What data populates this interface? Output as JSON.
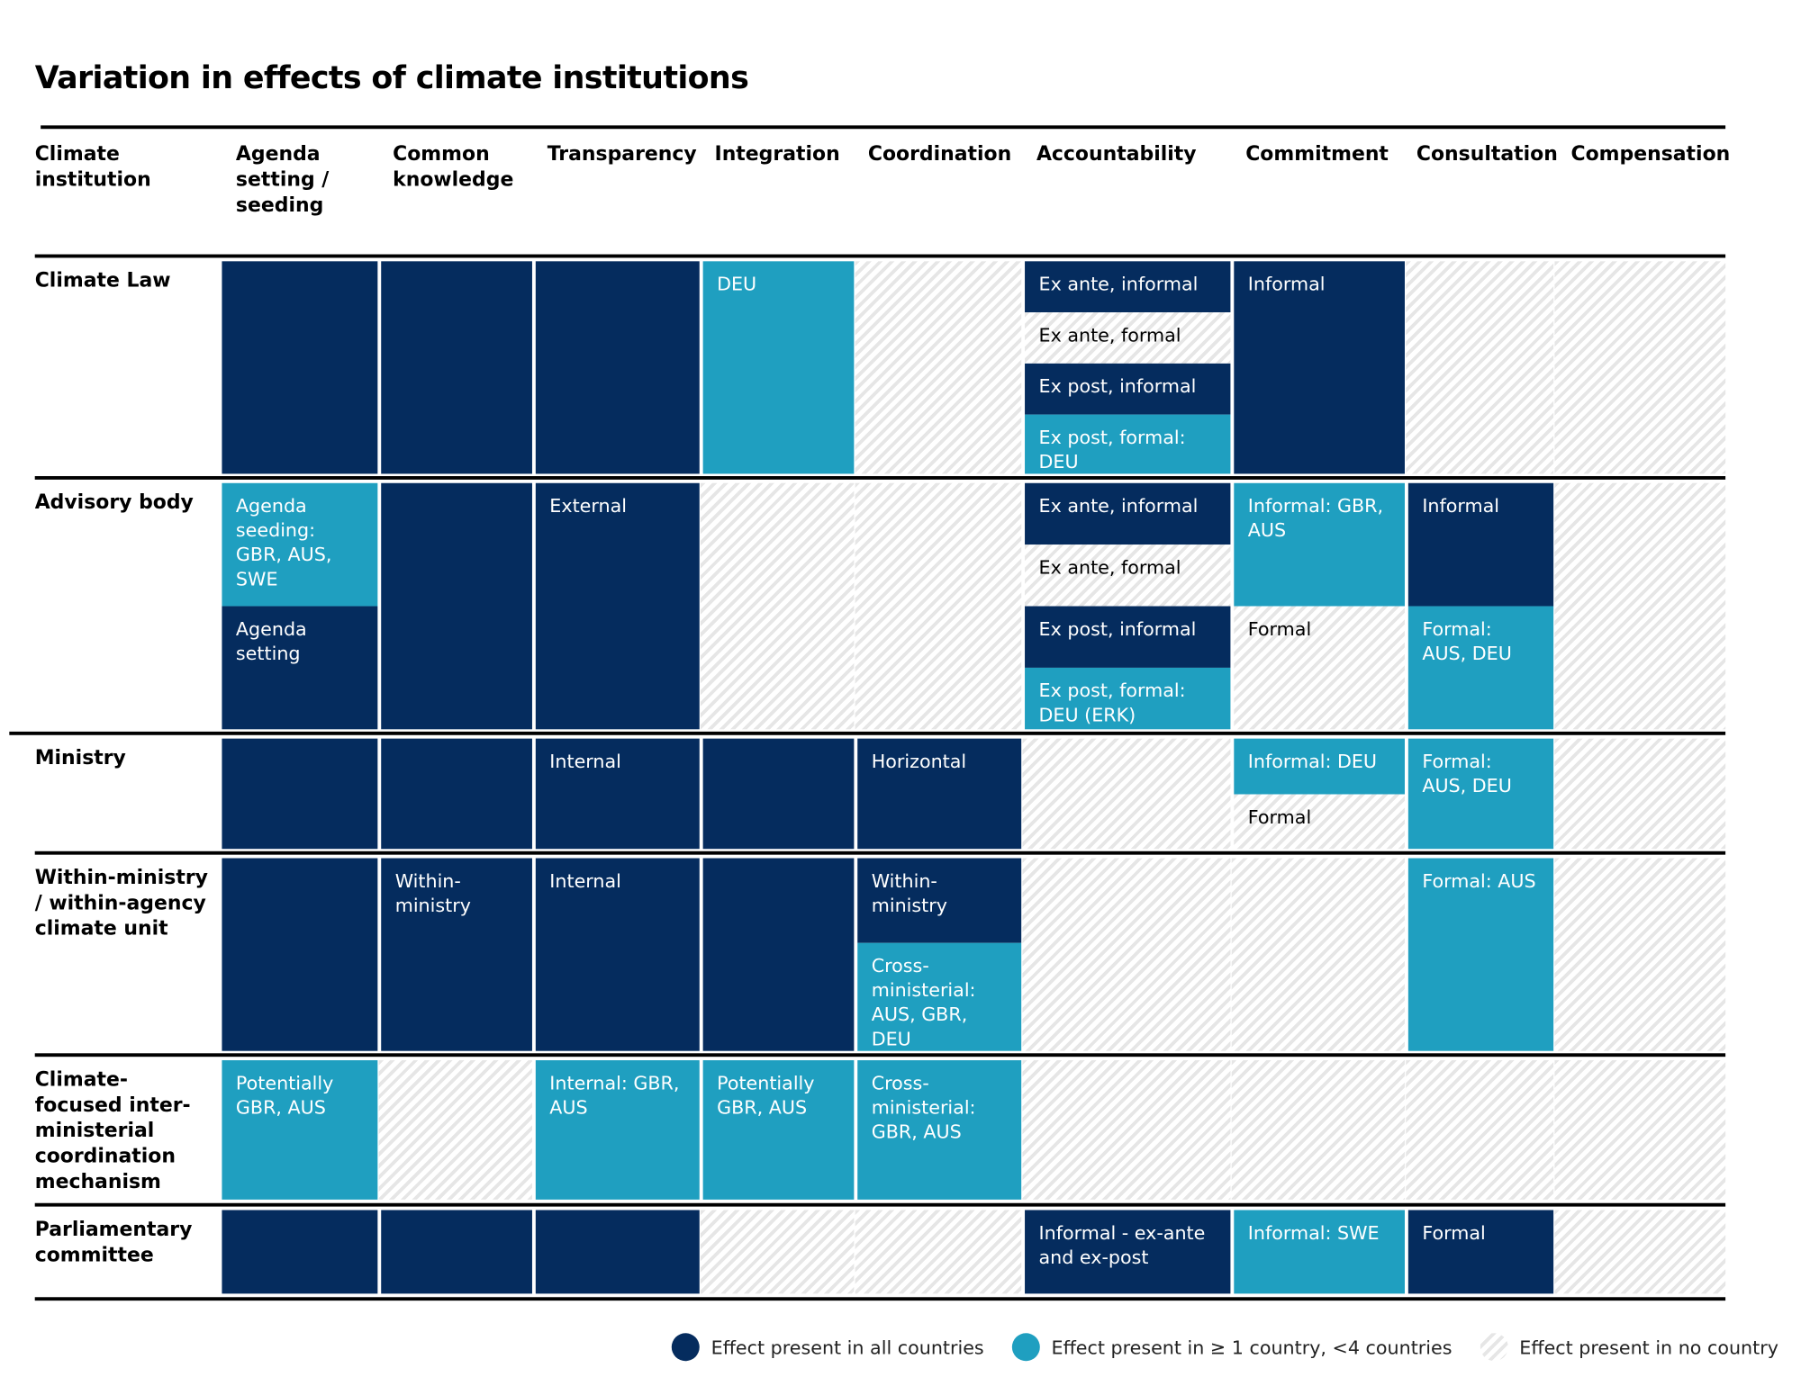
{
  "title": "Variation in effects of climate institutions",
  "columns": [
    "Climate institution",
    "Agenda setting / seeding",
    "Common knowledge",
    "Transparency",
    "Integration",
    "Coordination",
    "Accountability",
    "Commitment",
    "Consultation",
    "Compensation"
  ],
  "colors": {
    "all": "#052c5e",
    "some": "#1f9fc0"
  },
  "rows": [
    {
      "label": "Climate Law",
      "cells": [
        [
          {
            "level": "all"
          }
        ],
        [
          {
            "level": "all"
          }
        ],
        [
          {
            "level": "all"
          }
        ],
        [
          {
            "level": "some",
            "text": "DEU"
          }
        ],
        [
          {
            "level": "none"
          }
        ],
        [
          {
            "level": "all",
            "text": "Ex ante, informal"
          },
          {
            "level": "none",
            "text": "Ex ante, formal"
          },
          {
            "level": "all",
            "text": "Ex post, informal"
          },
          {
            "level": "some",
            "text": "Ex post, formal: DEU"
          }
        ],
        [
          {
            "level": "all",
            "text": "Informal"
          }
        ],
        [
          {
            "level": "none"
          }
        ],
        [
          {
            "level": "none"
          }
        ]
      ]
    },
    {
      "label": "Advisory body",
      "cells": [
        [
          {
            "level": "some",
            "text": "Agenda seeding: GBR, AUS, SWE"
          },
          {
            "level": "all",
            "text": "Agenda setting"
          }
        ],
        [
          {
            "level": "all"
          }
        ],
        [
          {
            "level": "all",
            "text": "External"
          }
        ],
        [
          {
            "level": "none"
          }
        ],
        [
          {
            "level": "none"
          }
        ],
        [
          {
            "level": "all",
            "text": "Ex ante, informal"
          },
          {
            "level": "none",
            "text": "Ex ante, formal"
          },
          {
            "level": "all",
            "text": "Ex post, informal"
          },
          {
            "level": "some",
            "text": "Ex post, formal: DEU (ERK)"
          }
        ],
        [
          {
            "level": "some",
            "text": "Informal: GBR, AUS"
          },
          {
            "level": "none",
            "text": "Formal"
          }
        ],
        [
          {
            "level": "all",
            "text": "Informal"
          },
          {
            "level": "some",
            "text": "Formal: AUS, DEU"
          }
        ],
        [
          {
            "level": "none"
          }
        ]
      ]
    },
    {
      "label": "Ministry",
      "cells": [
        [
          {
            "level": "all"
          }
        ],
        [
          {
            "level": "all"
          }
        ],
        [
          {
            "level": "all",
            "text": "Internal"
          }
        ],
        [
          {
            "level": "all"
          }
        ],
        [
          {
            "level": "all",
            "text": "Horizontal"
          }
        ],
        [
          {
            "level": "none"
          }
        ],
        [
          {
            "level": "some",
            "text": "Informal: DEU"
          },
          {
            "level": "none",
            "text": "Formal"
          }
        ],
        [
          {
            "level": "some",
            "text": "Formal: AUS, DEU"
          }
        ],
        [
          {
            "level": "none"
          }
        ]
      ]
    },
    {
      "label": "Within-ministry / within-agency climate unit",
      "cells": [
        [
          {
            "level": "all"
          }
        ],
        [
          {
            "level": "all",
            "text": "Within-ministry"
          }
        ],
        [
          {
            "level": "all",
            "text": "Internal"
          }
        ],
        [
          {
            "level": "all"
          }
        ],
        [
          {
            "level": "all",
            "text": "Within-ministry"
          },
          {
            "level": "some",
            "text": "Cross-ministerial: AUS, GBR, DEU"
          }
        ],
        [
          {
            "level": "none"
          }
        ],
        [
          {
            "level": "none"
          }
        ],
        [
          {
            "level": "some",
            "text": "Formal: AUS"
          }
        ],
        [
          {
            "level": "none"
          }
        ]
      ]
    },
    {
      "label": "Climate-focused inter-ministerial coordination mechanism",
      "cells": [
        [
          {
            "level": "some",
            "text": "Potentially GBR, AUS"
          }
        ],
        [
          {
            "level": "none"
          }
        ],
        [
          {
            "level": "some",
            "text": "Internal: GBR, AUS"
          }
        ],
        [
          {
            "level": "some",
            "text": "Potentially GBR, AUS"
          }
        ],
        [
          {
            "level": "some",
            "text": "Cross-ministerial: GBR, AUS"
          }
        ],
        [
          {
            "level": "none"
          }
        ],
        [
          {
            "level": "none"
          }
        ],
        [
          {
            "level": "none"
          }
        ],
        [
          {
            "level": "none"
          }
        ]
      ]
    },
    {
      "label": "Parliamentary committee",
      "cells": [
        [
          {
            "level": "all"
          }
        ],
        [
          {
            "level": "all"
          }
        ],
        [
          {
            "level": "all"
          }
        ],
        [
          {
            "level": "none"
          }
        ],
        [
          {
            "level": "none"
          }
        ],
        [
          {
            "level": "all",
            "text": "Informal - ex-ante and ex-post"
          }
        ],
        [
          {
            "level": "some",
            "text": "Informal: SWE"
          }
        ],
        [
          {
            "level": "all",
            "text": "Formal"
          }
        ],
        [
          {
            "level": "none"
          }
        ]
      ]
    }
  ],
  "legend": [
    {
      "level": "all",
      "label": "Effect present in all countries"
    },
    {
      "level": "some",
      "label": "Effect present in ≥ 1 country, <4 countries"
    },
    {
      "level": "none",
      "label": "Effect present in no country"
    }
  ]
}
